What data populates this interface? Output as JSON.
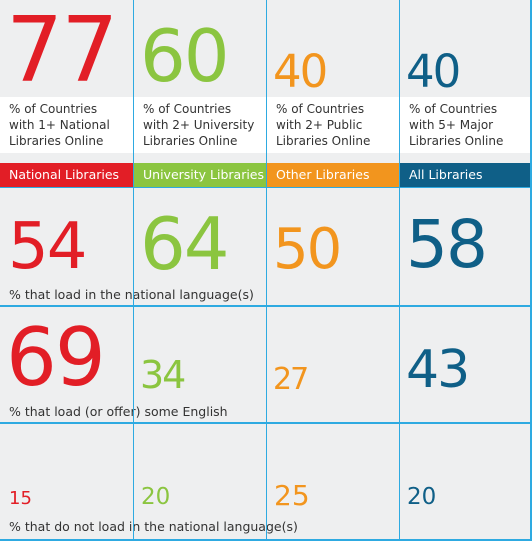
{
  "colors": {
    "national": "#e21e26",
    "university": "#8bc540",
    "other": "#f2951e",
    "all": "#0f5f87",
    "grid": "#2eaae1",
    "cell_bg": "#eeeff0"
  },
  "top": [
    {
      "value": "77",
      "caption": [
        "% of Countries",
        "with 1+ National",
        "Libraries Online"
      ]
    },
    {
      "value": "60",
      "caption": [
        "% of Countries",
        "with 2+ University",
        "Libraries Online"
      ]
    },
    {
      "value": "40",
      "caption": [
        "% of Countries",
        "with 2+ Public",
        "Libraries Online"
      ]
    },
    {
      "value": "40",
      "caption": [
        "% of Countries",
        "with 5+ Major",
        "Libraries Online"
      ]
    }
  ],
  "categories": [
    "National Libraries",
    "University Libraries",
    "Other Libraries",
    "All Libraries"
  ],
  "rows": [
    {
      "label": "% that load in the national language(s)",
      "values": [
        "54",
        "64",
        "50",
        "58"
      ]
    },
    {
      "label": "% that load (or offer) some English",
      "values": [
        "69",
        "34",
        "27",
        "43"
      ]
    },
    {
      "label": "% that do not load in the national language(s)",
      "values": [
        "15",
        "20",
        "25",
        "20"
      ]
    }
  ]
}
